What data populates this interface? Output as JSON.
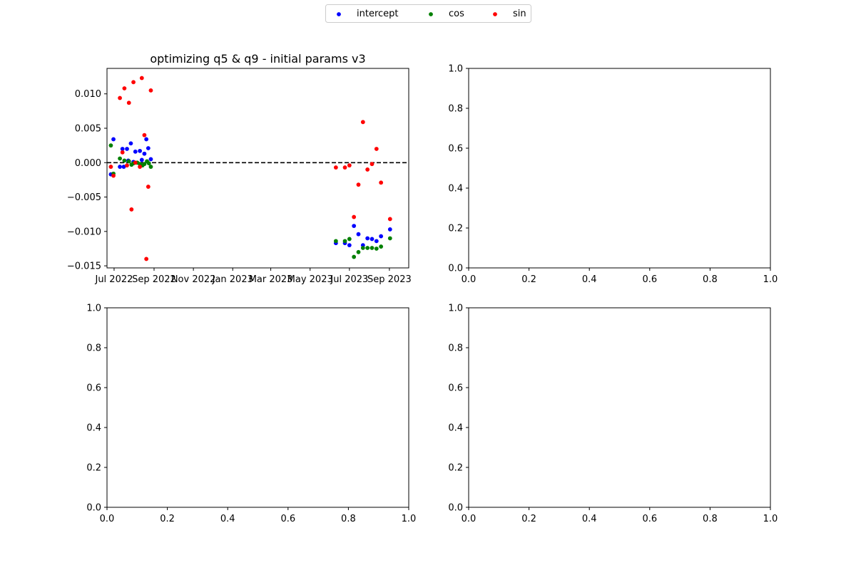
{
  "legend": {
    "entries": [
      {
        "label": "intercept",
        "color": "#0000ff"
      },
      {
        "label": "cos",
        "color": "#008000"
      },
      {
        "label": "sin",
        "color": "#ff0000"
      }
    ],
    "placement": "upper center"
  },
  "chart_data": [
    {
      "type": "scatter",
      "title": "optimizing q5 & q9 - initial params v3",
      "xlabel": "",
      "ylabel": "",
      "x_axis_type": "date",
      "xlim": [
        "2022-06-20",
        "2023-10-01"
      ],
      "ylim": [
        -0.0153,
        0.0137
      ],
      "x_ticks": [
        {
          "label": "Jul 2022",
          "date": "2022-07-01"
        },
        {
          "label": "Sep 2022",
          "date": "2022-09-01"
        },
        {
          "label": "Nov 2022",
          "date": "2022-11-01"
        },
        {
          "label": "Jan 2023",
          "date": "2023-01-01"
        },
        {
          "label": "Mar 2023",
          "date": "2023-03-01"
        },
        {
          "label": "May 2023",
          "date": "2023-05-01"
        },
        {
          "label": "Jul 2023",
          "date": "2023-07-01"
        },
        {
          "label": "Sep 2023",
          "date": "2023-09-01"
        }
      ],
      "y_ticks": [
        {
          "label": "0.010",
          "value": 0.01
        },
        {
          "label": "0.005",
          "value": 0.005
        },
        {
          "label": "0.000",
          "value": 0.0
        },
        {
          "label": "−0.005",
          "value": -0.005
        },
        {
          "label": "−0.010",
          "value": -0.01
        },
        {
          "label": "−0.015",
          "value": -0.015
        }
      ],
      "reference_line": {
        "y": 0.0,
        "style": "dashed",
        "color": "#000000"
      },
      "series": [
        {
          "name": "intercept",
          "color": "#0000ff",
          "points": [
            {
              "x": "2022-06-26",
              "y": -0.0017
            },
            {
              "x": "2022-06-30",
              "y": 0.0034
            },
            {
              "x": "2022-07-10",
              "y": -0.0006
            },
            {
              "x": "2022-07-14",
              "y": 0.002
            },
            {
              "x": "2022-07-16",
              "y": -0.0006
            },
            {
              "x": "2022-07-21",
              "y": 0.002
            },
            {
              "x": "2022-07-23",
              "y": 0.0003
            },
            {
              "x": "2022-07-27",
              "y": 0.0028
            },
            {
              "x": "2022-07-31",
              "y": 0.0001
            },
            {
              "x": "2022-08-03",
              "y": 0.0016
            },
            {
              "x": "2022-08-10",
              "y": 0.0017
            },
            {
              "x": "2022-08-13",
              "y": 0.0004
            },
            {
              "x": "2022-08-17",
              "y": 0.0013
            },
            {
              "x": "2022-08-20",
              "y": 0.0034
            },
            {
              "x": "2022-08-23",
              "y": 0.0021
            },
            {
              "x": "2022-08-27",
              "y": 0.0005
            },
            {
              "x": "2023-06-10",
              "y": -0.0117
            },
            {
              "x": "2023-06-24",
              "y": -0.0117
            },
            {
              "x": "2023-07-01",
              "y": -0.012
            },
            {
              "x": "2023-07-08",
              "y": -0.0092
            },
            {
              "x": "2023-07-15",
              "y": -0.0104
            },
            {
              "x": "2023-07-22",
              "y": -0.012
            },
            {
              "x": "2023-07-29",
              "y": -0.011
            },
            {
              "x": "2023-08-05",
              "y": -0.0111
            },
            {
              "x": "2023-08-12",
              "y": -0.0114
            },
            {
              "x": "2023-08-19",
              "y": -0.0107
            },
            {
              "x": "2023-09-02",
              "y": -0.0097
            }
          ]
        },
        {
          "name": "cos",
          "color": "#008000",
          "points": [
            {
              "x": "2022-06-26",
              "y": 0.0025
            },
            {
              "x": "2022-06-30",
              "y": -0.0016
            },
            {
              "x": "2022-07-10",
              "y": 0.0006
            },
            {
              "x": "2022-07-17",
              "y": 0.0003
            },
            {
              "x": "2022-07-24",
              "y": 0.0002
            },
            {
              "x": "2022-07-28",
              "y": -0.0003
            },
            {
              "x": "2022-07-31",
              "y": -0.0001
            },
            {
              "x": "2022-08-06",
              "y": 0.0
            },
            {
              "x": "2022-08-10",
              "y": -0.0002
            },
            {
              "x": "2022-08-14",
              "y": -0.0004
            },
            {
              "x": "2022-08-17",
              "y": -0.0002
            },
            {
              "x": "2022-08-21",
              "y": 0.0002
            },
            {
              "x": "2022-08-24",
              "y": -0.0001
            },
            {
              "x": "2022-08-27",
              "y": -0.0006
            },
            {
              "x": "2023-06-10",
              "y": -0.0114
            },
            {
              "x": "2023-06-24",
              "y": -0.0114
            },
            {
              "x": "2023-07-01",
              "y": -0.0111
            },
            {
              "x": "2023-07-08",
              "y": -0.0137
            },
            {
              "x": "2023-07-15",
              "y": -0.013
            },
            {
              "x": "2023-07-22",
              "y": -0.0124
            },
            {
              "x": "2023-07-29",
              "y": -0.0124
            },
            {
              "x": "2023-08-05",
              "y": -0.0124
            },
            {
              "x": "2023-08-12",
              "y": -0.0125
            },
            {
              "x": "2023-08-19",
              "y": -0.0122
            },
            {
              "x": "2023-09-02",
              "y": -0.011
            }
          ]
        },
        {
          "name": "sin",
          "color": "#ff0000",
          "points": [
            {
              "x": "2022-06-26",
              "y": -0.0006
            },
            {
              "x": "2022-06-30",
              "y": -0.0019
            },
            {
              "x": "2022-07-10",
              "y": 0.0094
            },
            {
              "x": "2022-07-14",
              "y": 0.0015
            },
            {
              "x": "2022-07-17",
              "y": 0.0108
            },
            {
              "x": "2022-07-21",
              "y": -0.0004
            },
            {
              "x": "2022-07-24",
              "y": 0.0087
            },
            {
              "x": "2022-07-28",
              "y": -0.0068
            },
            {
              "x": "2022-07-31",
              "y": 0.0117
            },
            {
              "x": "2022-08-03",
              "y": 0.0
            },
            {
              "x": "2022-08-10",
              "y": -0.0006
            },
            {
              "x": "2022-08-13",
              "y": 0.0123
            },
            {
              "x": "2022-08-17",
              "y": 0.004
            },
            {
              "x": "2022-08-20",
              "y": -0.014
            },
            {
              "x": "2022-08-23",
              "y": -0.0035
            },
            {
              "x": "2022-08-27",
              "y": 0.0105
            },
            {
              "x": "2023-06-10",
              "y": -0.0007
            },
            {
              "x": "2023-06-24",
              "y": -0.0007
            },
            {
              "x": "2023-07-01",
              "y": -0.0004
            },
            {
              "x": "2023-07-08",
              "y": -0.0079
            },
            {
              "x": "2023-07-15",
              "y": -0.0032
            },
            {
              "x": "2023-07-22",
              "y": 0.0059
            },
            {
              "x": "2023-07-29",
              "y": -0.001
            },
            {
              "x": "2023-08-05",
              "y": -0.0002
            },
            {
              "x": "2023-08-12",
              "y": 0.002
            },
            {
              "x": "2023-08-19",
              "y": -0.0029
            },
            {
              "x": "2023-09-02",
              "y": -0.0082
            }
          ]
        }
      ]
    },
    {
      "type": "scatter",
      "title": "",
      "xlim": [
        0,
        1
      ],
      "ylim": [
        0,
        1
      ],
      "x_ticks": [
        {
          "label": "0.0",
          "value": 0.0
        },
        {
          "label": "0.2",
          "value": 0.2
        },
        {
          "label": "0.4",
          "value": 0.4
        },
        {
          "label": "0.6",
          "value": 0.6
        },
        {
          "label": "0.8",
          "value": 0.8
        },
        {
          "label": "1.0",
          "value": 1.0
        }
      ],
      "y_ticks": [
        {
          "label": "0.0",
          "value": 0.0
        },
        {
          "label": "0.2",
          "value": 0.2
        },
        {
          "label": "0.4",
          "value": 0.4
        },
        {
          "label": "0.6",
          "value": 0.6
        },
        {
          "label": "0.8",
          "value": 0.8
        },
        {
          "label": "1.0",
          "value": 1.0
        }
      ],
      "series": []
    },
    {
      "type": "scatter",
      "title": "",
      "xlim": [
        0,
        1
      ],
      "ylim": [
        0,
        1
      ],
      "x_ticks": [
        {
          "label": "0.0",
          "value": 0.0
        },
        {
          "label": "0.2",
          "value": 0.2
        },
        {
          "label": "0.4",
          "value": 0.4
        },
        {
          "label": "0.6",
          "value": 0.6
        },
        {
          "label": "0.8",
          "value": 0.8
        },
        {
          "label": "1.0",
          "value": 1.0
        }
      ],
      "y_ticks": [
        {
          "label": "0.0",
          "value": 0.0
        },
        {
          "label": "0.2",
          "value": 0.2
        },
        {
          "label": "0.4",
          "value": 0.4
        },
        {
          "label": "0.6",
          "value": 0.6
        },
        {
          "label": "0.8",
          "value": 0.8
        },
        {
          "label": "1.0",
          "value": 1.0
        }
      ],
      "series": []
    },
    {
      "type": "scatter",
      "title": "",
      "xlim": [
        0,
        1
      ],
      "ylim": [
        0,
        1
      ],
      "x_ticks": [
        {
          "label": "0.0",
          "value": 0.0
        },
        {
          "label": "0.2",
          "value": 0.2
        },
        {
          "label": "0.4",
          "value": 0.4
        },
        {
          "label": "0.6",
          "value": 0.6
        },
        {
          "label": "0.8",
          "value": 0.8
        },
        {
          "label": "1.0",
          "value": 1.0
        }
      ],
      "y_ticks": [
        {
          "label": "0.0",
          "value": 0.0
        },
        {
          "label": "0.2",
          "value": 0.2
        },
        {
          "label": "0.4",
          "value": 0.4
        },
        {
          "label": "0.6",
          "value": 0.6
        },
        {
          "label": "0.8",
          "value": 0.8
        },
        {
          "label": "1.0",
          "value": 1.0
        }
      ],
      "series": []
    }
  ]
}
